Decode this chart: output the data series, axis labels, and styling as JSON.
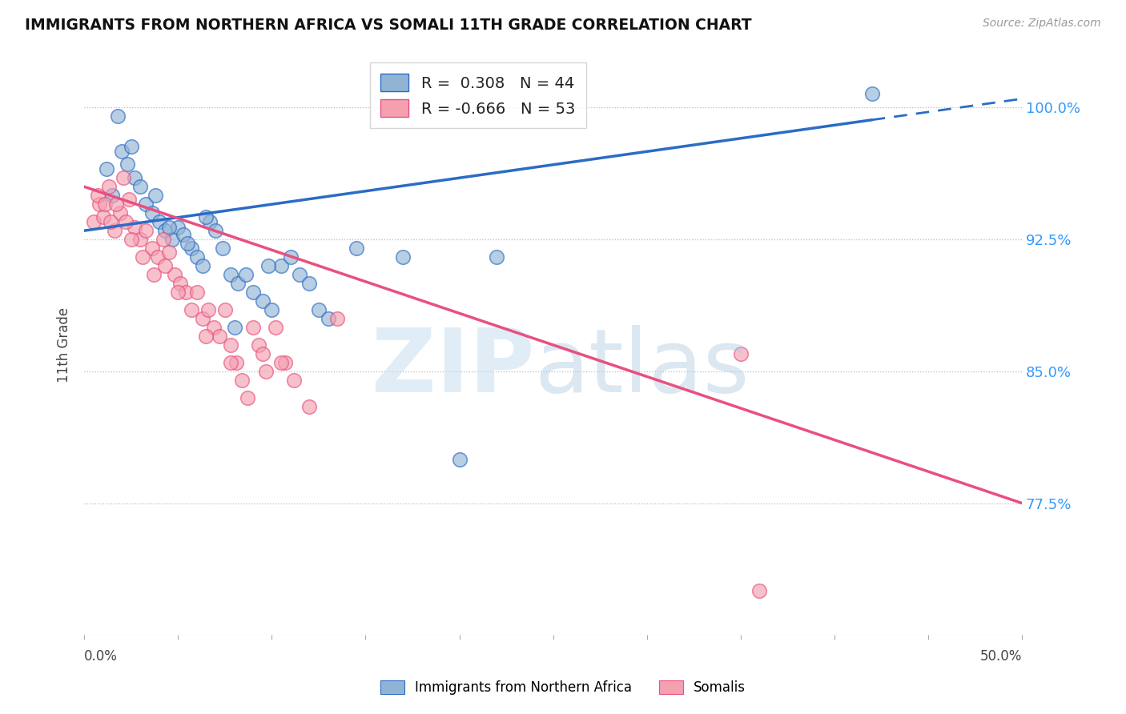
{
  "title": "IMMIGRANTS FROM NORTHERN AFRICA VS SOMALI 11TH GRADE CORRELATION CHART",
  "source": "Source: ZipAtlas.com",
  "ylabel": "11th Grade",
  "y_ticks": [
    77.5,
    85.0,
    92.5,
    100.0
  ],
  "y_labels": [
    "77.5%",
    "85.0%",
    "92.5%",
    "100.0%"
  ],
  "x_range": [
    0.0,
    50.0
  ],
  "y_range": [
    70.0,
    103.0
  ],
  "legend_blue_r": "0.308",
  "legend_blue_n": "44",
  "legend_pink_r": "-0.666",
  "legend_pink_n": "53",
  "blue_color": "#92B4D4",
  "pink_color": "#F4A0B0",
  "blue_line_color": "#2B6CC4",
  "pink_line_color": "#E85080",
  "blue_trend_x0": 0.0,
  "blue_trend_y0": 93.0,
  "blue_trend_x1": 50.0,
  "blue_trend_y1": 100.5,
  "blue_trend_solid_x1": 42.0,
  "pink_trend_x0": 0.0,
  "pink_trend_y0": 95.5,
  "pink_trend_x1": 50.0,
  "pink_trend_y1": 77.5,
  "blue_scatter_x": [
    1.2,
    1.5,
    2.0,
    2.3,
    2.7,
    3.0,
    3.3,
    3.6,
    4.0,
    4.3,
    4.7,
    5.0,
    5.3,
    5.7,
    6.0,
    6.3,
    6.7,
    7.0,
    7.4,
    7.8,
    8.2,
    8.6,
    9.0,
    9.5,
    10.0,
    10.5,
    11.0,
    11.5,
    12.0,
    12.5,
    13.0,
    14.5,
    17.0,
    20.0,
    22.0,
    1.8,
    2.5,
    3.8,
    4.5,
    5.5,
    6.5,
    8.0,
    42.0,
    9.8
  ],
  "blue_scatter_y": [
    96.5,
    95.0,
    97.5,
    96.8,
    96.0,
    95.5,
    94.5,
    94.0,
    93.5,
    93.0,
    92.5,
    93.2,
    92.8,
    92.0,
    91.5,
    91.0,
    93.5,
    93.0,
    92.0,
    90.5,
    90.0,
    90.5,
    89.5,
    89.0,
    88.5,
    91.0,
    91.5,
    90.5,
    90.0,
    88.5,
    88.0,
    92.0,
    91.5,
    80.0,
    91.5,
    99.5,
    97.8,
    95.0,
    93.2,
    92.3,
    93.8,
    87.5,
    100.8,
    91.0
  ],
  "pink_scatter_x": [
    0.5,
    0.8,
    1.0,
    1.3,
    1.6,
    1.9,
    2.1,
    2.4,
    2.7,
    3.0,
    3.3,
    3.6,
    3.9,
    4.2,
    4.5,
    4.8,
    5.1,
    5.4,
    5.7,
    6.0,
    6.3,
    6.6,
    6.9,
    7.2,
    7.5,
    7.8,
    8.1,
    8.4,
    8.7,
    9.0,
    9.3,
    9.7,
    10.2,
    10.7,
    11.2,
    12.0,
    13.5,
    0.7,
    1.1,
    1.4,
    1.7,
    2.2,
    2.5,
    3.1,
    3.7,
    4.3,
    5.0,
    6.5,
    7.8,
    9.5,
    10.5,
    35.0,
    36.0
  ],
  "pink_scatter_y": [
    93.5,
    94.5,
    93.8,
    95.5,
    93.0,
    94.0,
    96.0,
    94.8,
    93.2,
    92.5,
    93.0,
    92.0,
    91.5,
    92.5,
    91.8,
    90.5,
    90.0,
    89.5,
    88.5,
    89.5,
    88.0,
    88.5,
    87.5,
    87.0,
    88.5,
    86.5,
    85.5,
    84.5,
    83.5,
    87.5,
    86.5,
    85.0,
    87.5,
    85.5,
    84.5,
    83.0,
    88.0,
    95.0,
    94.5,
    93.5,
    94.5,
    93.5,
    92.5,
    91.5,
    90.5,
    91.0,
    89.5,
    87.0,
    85.5,
    86.0,
    85.5,
    86.0,
    72.5
  ]
}
